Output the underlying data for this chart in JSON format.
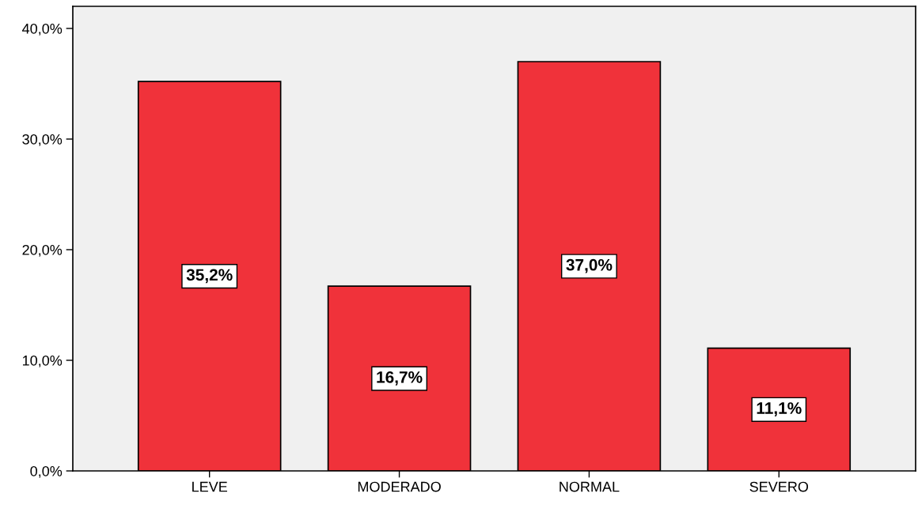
{
  "chart_data": {
    "type": "bar",
    "categories": [
      "LEVE",
      "MODERADO",
      "NORMAL",
      "SEVERO"
    ],
    "values": [
      35.2,
      16.7,
      37.0,
      11.1
    ],
    "value_labels": [
      "35,2%",
      "16,7%",
      "37,0%",
      "11,1%"
    ],
    "color": "#f0323a",
    "ylim": [
      0,
      42
    ],
    "yticks": [
      {
        "value": 0,
        "label": "0,0%"
      },
      {
        "value": 10,
        "label": "10,0%"
      },
      {
        "value": 20,
        "label": "20,0%"
      },
      {
        "value": 30,
        "label": "30,0%"
      },
      {
        "value": 40,
        "label": "40,0%"
      }
    ],
    "grid": false
  }
}
